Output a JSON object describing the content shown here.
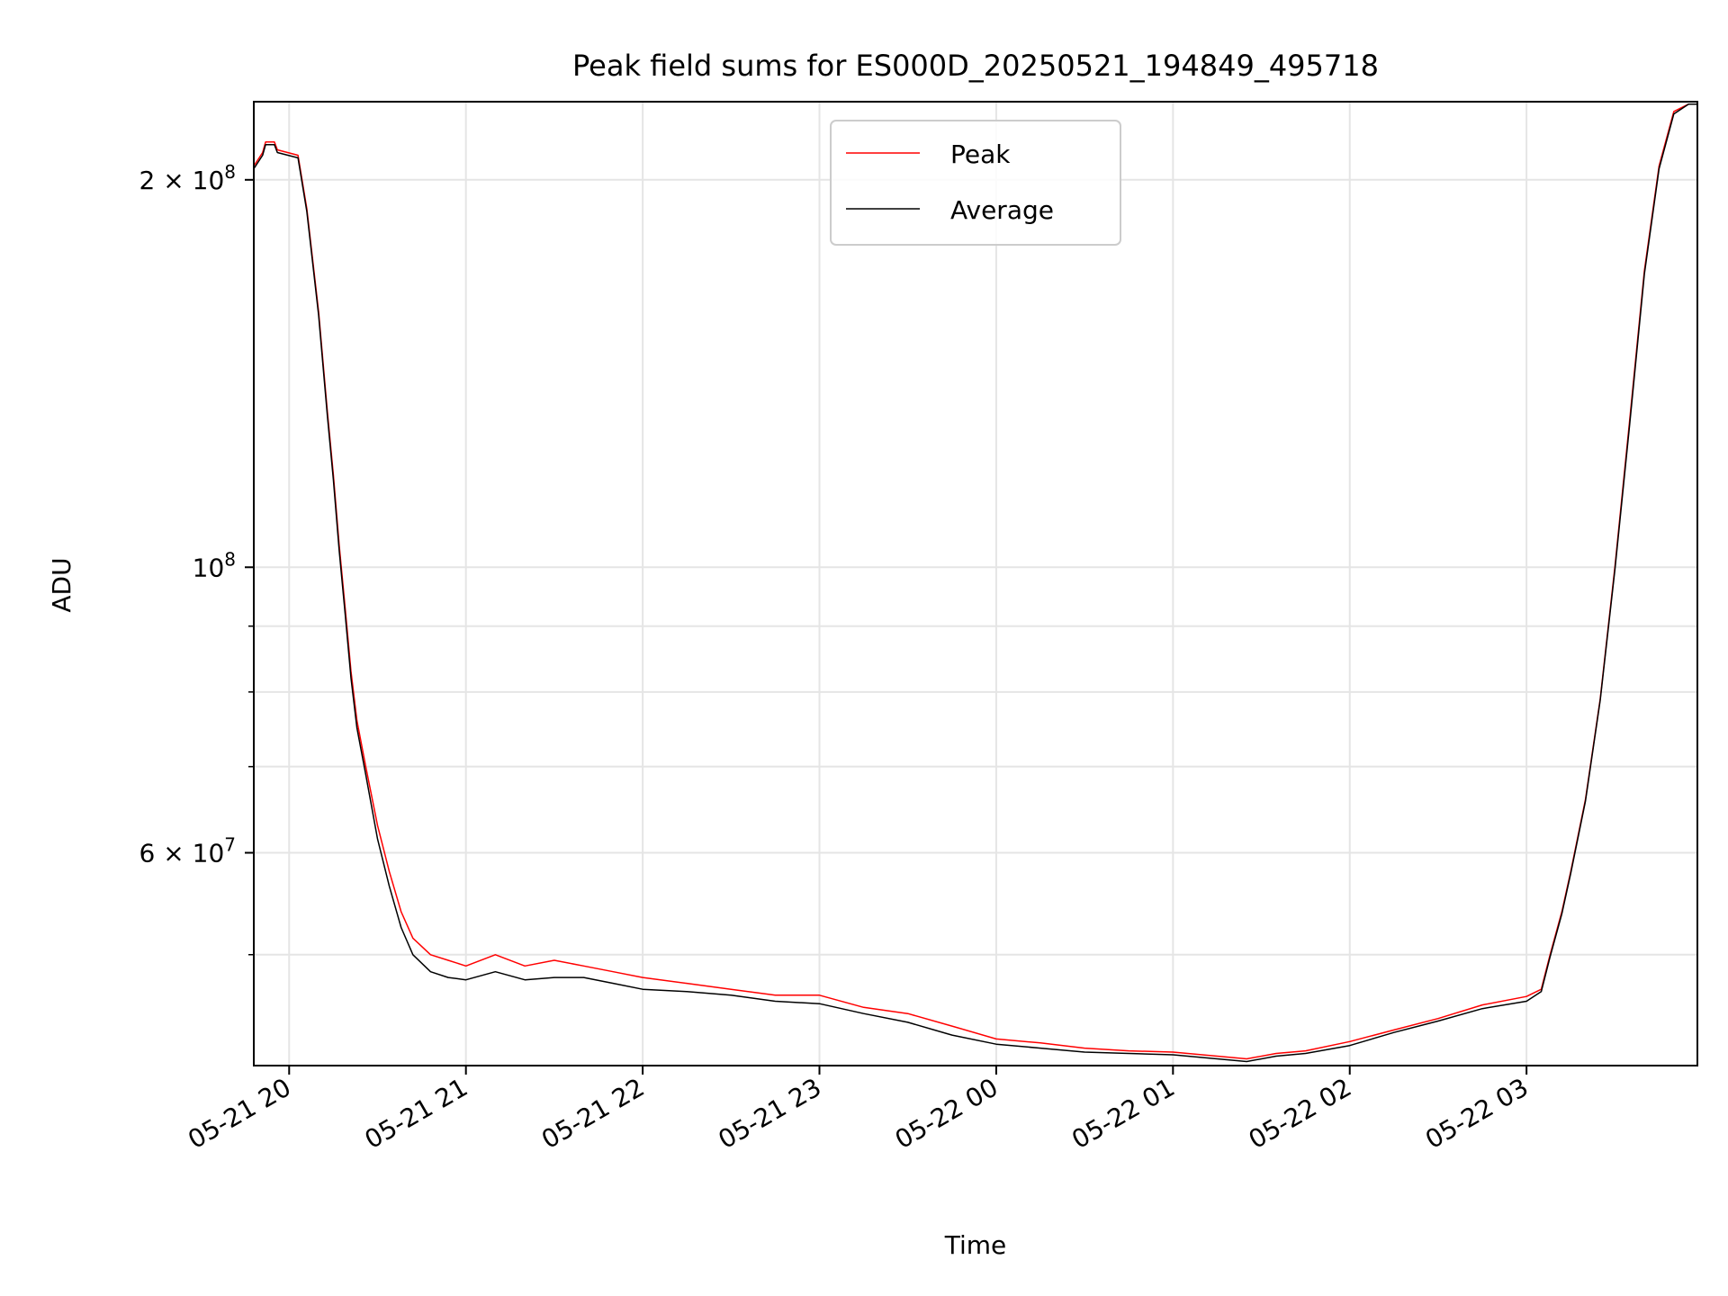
{
  "chart_data": {
    "type": "line",
    "title": "Peak field sums for ES000D_20250521_194849_495718",
    "xlabel": "Time",
    "ylabel": "ADU",
    "yscale": "log",
    "grid": true,
    "legend_position": "upper center",
    "xlim": [
      "2025-05-21 19:48",
      "2025-05-22 03:58"
    ],
    "ylim": [
      41000000,
      230000000
    ],
    "x_ticks": [
      {
        "value": "2025-05-21 20:00",
        "label": "05-21 20"
      },
      {
        "value": "2025-05-21 21:00",
        "label": "05-21 21"
      },
      {
        "value": "2025-05-21 22:00",
        "label": "05-21 22"
      },
      {
        "value": "2025-05-21 23:00",
        "label": "05-21 23"
      },
      {
        "value": "2025-05-22 00:00",
        "label": "05-22 00"
      },
      {
        "value": "2025-05-22 01:00",
        "label": "05-22 01"
      },
      {
        "value": "2025-05-22 02:00",
        "label": "05-22 02"
      },
      {
        "value": "2025-05-22 03:00",
        "label": "05-22 03"
      }
    ],
    "y_ticks": [
      {
        "value": 200000000,
        "base": "2 × 10",
        "exp": "8"
      },
      {
        "value": 100000000,
        "base": "10",
        "exp": "8"
      },
      {
        "value": 60000000,
        "base": "6 × 10",
        "exp": "7"
      }
    ],
    "y_minor_ticks": [
      50000000,
      70000000,
      80000000,
      90000000
    ],
    "colors": {
      "peak": "#ff0000",
      "average": "#000000",
      "grid": "#e5e5e5"
    },
    "series": [
      {
        "name": "Peak",
        "color": "#ff0000",
        "x": [
          "2025-05-21 19:48",
          "2025-05-21 19:51",
          "2025-05-21 19:52",
          "2025-05-21 19:55",
          "2025-05-21 19:56",
          "2025-05-21 20:03",
          "2025-05-21 20:06",
          "2025-05-21 20:10",
          "2025-05-21 20:13",
          "20:15",
          "20:17",
          "20:19",
          "20:21",
          "20:23",
          "20:26",
          "20:30",
          "20:34",
          "20:38",
          "20:42",
          "20:48",
          "20:54",
          "21:00",
          "21:10",
          "21:20",
          "21:30",
          "21:40",
          "21:50",
          "22:00",
          "22:15",
          "22:30",
          "22:45",
          "23:00",
          "23:15",
          "23:30",
          "23:45",
          "00:00",
          "00:15",
          "00:30",
          "00:45",
          "01:00",
          "01:15",
          "01:25",
          "01:35",
          "01:45",
          "02:00",
          "02:15",
          "02:30",
          "02:45",
          "03:00",
          "03:05",
          "03:08",
          "03:12",
          "03:15",
          "03:20",
          "03:25",
          "03:30",
          "03:35",
          "03:40",
          "03:45",
          "03:50",
          "03:55",
          "03:58"
        ],
        "values": [
          205000000,
          210000000,
          214000000,
          214000000,
          211000000,
          209000000,
          190000000,
          158000000,
          132000000,
          118000000,
          104000000,
          93000000,
          83000000,
          76000000,
          70000000,
          63000000,
          58000000,
          54000000,
          51500000,
          50000000,
          49500000,
          49000000,
          50000000,
          49000000,
          49500000,
          49000000,
          48500000,
          48000000,
          47500000,
          47000000,
          46500000,
          46500000,
          45500000,
          45000000,
          44000000,
          43000000,
          42700000,
          42300000,
          42100000,
          42000000,
          41700000,
          41500000,
          41900000,
          42100000,
          42800000,
          43700000,
          44600000,
          45700000,
          46400000,
          47000000,
          50000000,
          54000000,
          58000000,
          66000000,
          79000000,
          100000000,
          130000000,
          170000000,
          205000000,
          226000000,
          229000000,
          229000000
        ]
      },
      {
        "name": "Average",
        "color": "#000000",
        "x": [
          "2025-05-21 19:48",
          "2025-05-21 19:51",
          "2025-05-21 19:52",
          "2025-05-21 19:55",
          "2025-05-21 19:56",
          "2025-05-21 20:03",
          "2025-05-21 20:06",
          "2025-05-21 20:10",
          "2025-05-21 20:13",
          "20:15",
          "20:17",
          "20:19",
          "20:21",
          "20:23",
          "20:26",
          "20:30",
          "20:34",
          "20:38",
          "20:42",
          "20:48",
          "20:54",
          "21:00",
          "21:10",
          "21:20",
          "21:30",
          "21:40",
          "21:50",
          "22:00",
          "22:15",
          "22:30",
          "22:45",
          "23:00",
          "23:15",
          "23:30",
          "23:45",
          "00:00",
          "00:15",
          "00:30",
          "00:45",
          "01:00",
          "01:15",
          "01:25",
          "01:35",
          "01:45",
          "02:00",
          "02:15",
          "02:30",
          "02:45",
          "03:00",
          "03:05",
          "03:08",
          "03:12",
          "03:15",
          "03:20",
          "03:25",
          "03:30",
          "03:35",
          "03:40",
          "03:45",
          "03:50",
          "03:55",
          "03:58"
        ],
        "values": [
          204000000,
          209000000,
          213000000,
          213000000,
          210000000,
          208000000,
          189000000,
          157000000,
          131000000,
          117000000,
          103000000,
          92000000,
          82000000,
          75000000,
          69000000,
          61500000,
          56500000,
          52500000,
          50000000,
          48500000,
          48000000,
          47800000,
          48500000,
          47800000,
          48000000,
          48000000,
          47500000,
          47000000,
          46800000,
          46500000,
          46000000,
          45800000,
          45000000,
          44300000,
          43300000,
          42600000,
          42300000,
          42000000,
          41900000,
          41800000,
          41500000,
          41300000,
          41700000,
          41900000,
          42500000,
          43500000,
          44400000,
          45400000,
          46000000,
          46800000,
          49800000,
          53800000,
          57800000,
          65800000,
          78800000,
          99500000,
          129000000,
          169000000,
          204000000,
          225000000,
          229000000,
          229000000
        ]
      }
    ]
  }
}
